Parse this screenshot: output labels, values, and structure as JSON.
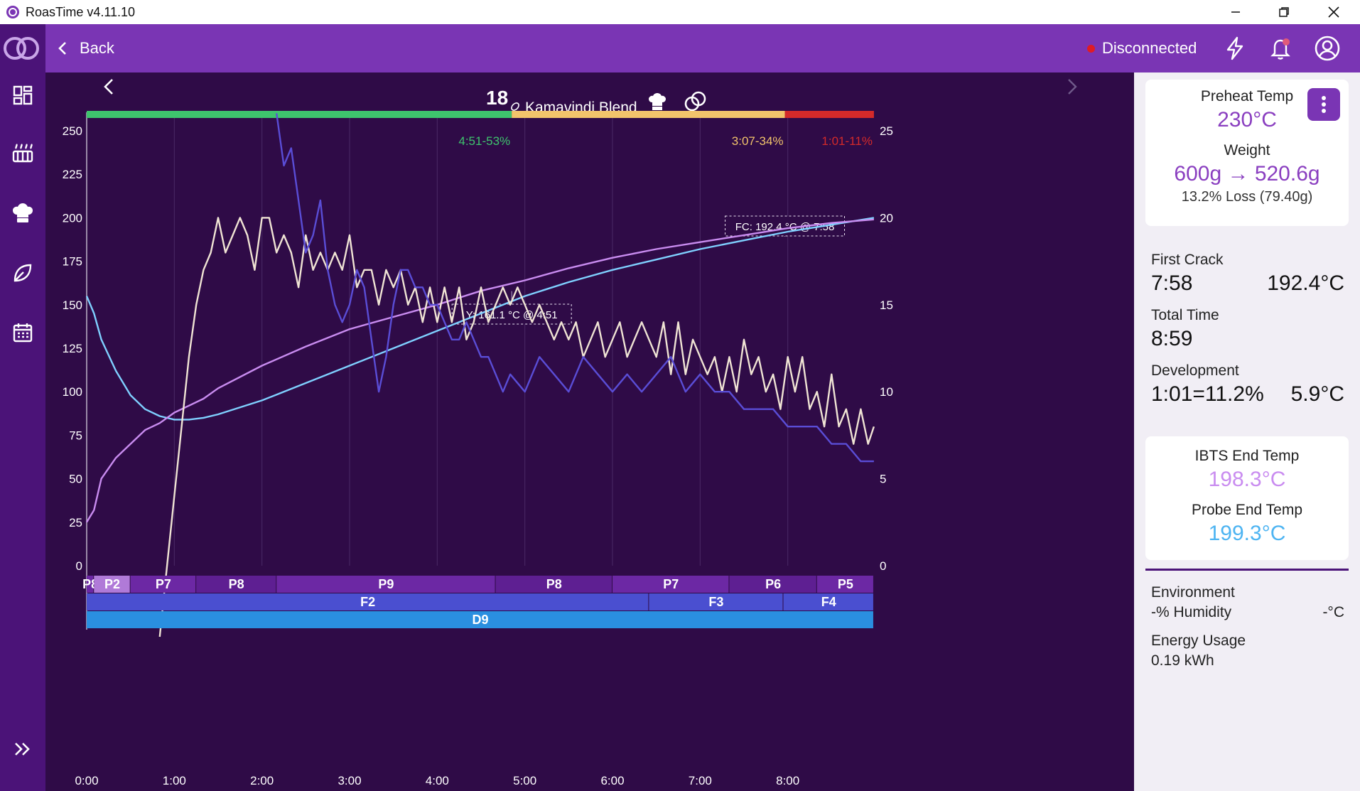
{
  "window": {
    "title": "RoasTime v4.11.10"
  },
  "header": {
    "back_label": "Back",
    "status_text": "Disconnected"
  },
  "nav": {
    "icons": [
      "dashboard-icon",
      "roaster-icon",
      "chef-hat-icon",
      "leaf-icon",
      "calendar-icon"
    ],
    "expand_icon": "chevrons-right-icon"
  },
  "chart_header": {
    "roast_number": "18",
    "bean_name": "Kamavindi Blend"
  },
  "chart_data": {
    "type": "line",
    "xlim": [
      0,
      540
    ],
    "ylim_left": [
      0,
      250
    ],
    "ylim_right": [
      0,
      25
    ],
    "x_ticks": [
      "0:00",
      "1:00",
      "2:00",
      "3:00",
      "4:00",
      "5:00",
      "6:00",
      "7:00",
      "8:00"
    ],
    "y_ticks_left": [
      "0",
      "25",
      "50",
      "75",
      "100",
      "125",
      "150",
      "175",
      "200",
      "225",
      "250"
    ],
    "y_ticks_right": [
      "0",
      "5",
      "10",
      "15",
      "20",
      "25"
    ],
    "phases": [
      {
        "label": "4:51-53%",
        "start": 0,
        "end": 291,
        "color": "#3ec46d"
      },
      {
        "label": "3:07-34%",
        "start": 291,
        "end": 478,
        "color": "#f2c46b"
      },
      {
        "label": "1:01-11%",
        "start": 478,
        "end": 539,
        "color": "#d42a2a"
      }
    ],
    "annotations": [
      {
        "label": "Y: 161.1 °C @ 4:51",
        "x": 291,
        "y": 161.1
      },
      {
        "label": "FC: 192.4 °C @ 7:58",
        "x": 478,
        "y": 192.4
      }
    ],
    "series": [
      {
        "color": "#7fd0ff",
        "axis": "left",
        "x": [
          0,
          5,
          10,
          20,
          30,
          40,
          50,
          60,
          70,
          80,
          90,
          120,
          150,
          180,
          210,
          240,
          270,
          300,
          330,
          360,
          390,
          420,
          450,
          480,
          510,
          539
        ],
        "y": [
          155,
          145,
          130,
          112,
          98,
          90,
          86,
          84,
          84,
          85,
          87,
          95,
          105,
          115,
          125,
          135,
          145,
          155,
          163,
          170,
          176,
          182,
          187,
          192,
          196,
          200
        ]
      },
      {
        "color": "#c98cf0",
        "axis": "left",
        "x": [
          0,
          5,
          10,
          20,
          30,
          40,
          50,
          60,
          70,
          80,
          90,
          120,
          150,
          180,
          210,
          240,
          270,
          300,
          330,
          360,
          390,
          420,
          450,
          480,
          510,
          539
        ],
        "y": [
          25,
          32,
          50,
          62,
          70,
          78,
          82,
          88,
          92,
          96,
          102,
          115,
          126,
          136,
          143,
          150,
          158,
          164,
          171,
          177,
          182,
          186,
          190,
          194,
          197,
          199
        ]
      },
      {
        "color": "#f0e4d4",
        "axis": "right",
        "x": [
          50,
          55,
          60,
          65,
          70,
          75,
          80,
          85,
          90,
          95,
          100,
          105,
          110,
          115,
          120,
          125,
          130,
          135,
          140,
          145,
          150,
          155,
          160,
          165,
          170,
          175,
          180,
          185,
          190,
          195,
          200,
          205,
          210,
          215,
          220,
          225,
          230,
          235,
          240,
          245,
          250,
          255,
          260,
          265,
          270,
          275,
          280,
          285,
          290,
          295,
          300,
          305,
          310,
          315,
          320,
          325,
          330,
          335,
          340,
          345,
          350,
          355,
          360,
          365,
          370,
          375,
          380,
          385,
          390,
          395,
          400,
          405,
          410,
          415,
          420,
          425,
          430,
          435,
          440,
          445,
          450,
          455,
          460,
          465,
          470,
          475,
          480,
          485,
          490,
          495,
          500,
          505,
          510,
          515,
          520,
          525,
          530,
          535,
          539
        ],
        "y": [
          -5,
          0,
          4,
          8,
          12,
          15,
          17,
          18,
          20,
          18,
          19,
          20,
          19,
          17,
          20,
          20,
          18,
          19,
          18,
          16,
          19,
          17,
          18,
          17,
          18,
          17,
          19,
          16,
          17,
          17,
          15,
          17,
          16,
          17,
          15,
          16,
          14,
          16,
          14,
          16,
          14,
          16,
          13,
          14,
          16,
          14,
          15,
          16,
          15,
          16,
          15,
          14,
          15,
          14,
          13,
          14,
          13,
          14,
          12,
          13,
          14,
          12,
          13,
          14,
          12,
          13,
          14,
          13,
          12,
          14,
          11,
          14,
          11,
          13,
          12,
          11,
          12,
          10,
          12,
          10,
          13,
          11,
          12,
          10,
          11,
          9,
          12,
          10,
          12,
          9,
          10,
          8,
          11,
          8,
          9,
          7,
          9,
          7,
          8
        ]
      },
      {
        "color": "#5a4dd6",
        "axis": "right",
        "x": [
          130,
          135,
          140,
          145,
          150,
          155,
          160,
          165,
          170,
          175,
          180,
          185,
          190,
          195,
          200,
          205,
          210,
          215,
          220,
          225,
          230,
          235,
          240,
          245,
          250,
          255,
          260,
          265,
          270,
          275,
          280,
          285,
          290,
          300,
          310,
          320,
          330,
          340,
          350,
          360,
          370,
          380,
          390,
          400,
          410,
          420,
          430,
          440,
          450,
          460,
          470,
          480,
          490,
          500,
          510,
          520,
          530,
          539
        ],
        "y": [
          26,
          23,
          24,
          21,
          18,
          19,
          21,
          17,
          15,
          14,
          15,
          17,
          16,
          13,
          10,
          12,
          15,
          17,
          17,
          16,
          16,
          15,
          15,
          14,
          13,
          13,
          14,
          13,
          12,
          12,
          11,
          10,
          11,
          10,
          12,
          11,
          10,
          12,
          11,
          10,
          11,
          10,
          11,
          12,
          10,
          11,
          10,
          10,
          9,
          9,
          9,
          8,
          8,
          8,
          7,
          7,
          6,
          6
        ]
      }
    ],
    "bottom_bands": [
      {
        "color": "#8a3cc7",
        "segments": [
          {
            "label": "P8",
            "start": 0,
            "end": 5
          },
          {
            "label": "P2",
            "start": 5,
            "end": 30
          },
          {
            "label": "P7",
            "start": 30,
            "end": 75
          },
          {
            "label": "P8",
            "start": 75,
            "end": 130
          },
          {
            "label": "P9",
            "start": 130,
            "end": 280
          },
          {
            "label": "P8",
            "start": 280,
            "end": 360
          },
          {
            "label": "P7",
            "start": 360,
            "end": 440
          },
          {
            "label": "P6",
            "start": 440,
            "end": 500
          },
          {
            "label": "P5",
            "start": 500,
            "end": 539
          }
        ]
      },
      {
        "color": "#4a4fd0",
        "segments": [
          {
            "label": "F2",
            "start": 0,
            "end": 385
          },
          {
            "label": "F3",
            "start": 385,
            "end": 477
          },
          {
            "label": "F4",
            "start": 477,
            "end": 539
          }
        ]
      },
      {
        "color": "#2a8fe0",
        "segments": [
          {
            "label": "D9",
            "start": 0,
            "end": 539
          }
        ]
      }
    ]
  },
  "panel": {
    "preheat_label": "Preheat Temp",
    "preheat_value": "230°C",
    "weight_label": "Weight",
    "weight_value": "600g → 520.6g",
    "weight_loss": "13.2% Loss (79.40g)",
    "first_crack_label": "First Crack",
    "first_crack_time": "7:58",
    "first_crack_temp": "192.4°C",
    "total_time_label": "Total Time",
    "total_time_value": "8:59",
    "development_label": "Development",
    "development_value": "1:01=11.2%",
    "development_delta": "5.9°C",
    "ibts_label": "IBTS End Temp",
    "ibts_value": "198.3°C",
    "probe_label": "Probe End Temp",
    "probe_value": "199.3°C",
    "environment_label": "Environment",
    "humidity_label": "-% Humidity",
    "env_temp": "-°C",
    "energy_label": "Energy Usage",
    "energy_value": "0.19 kWh"
  }
}
